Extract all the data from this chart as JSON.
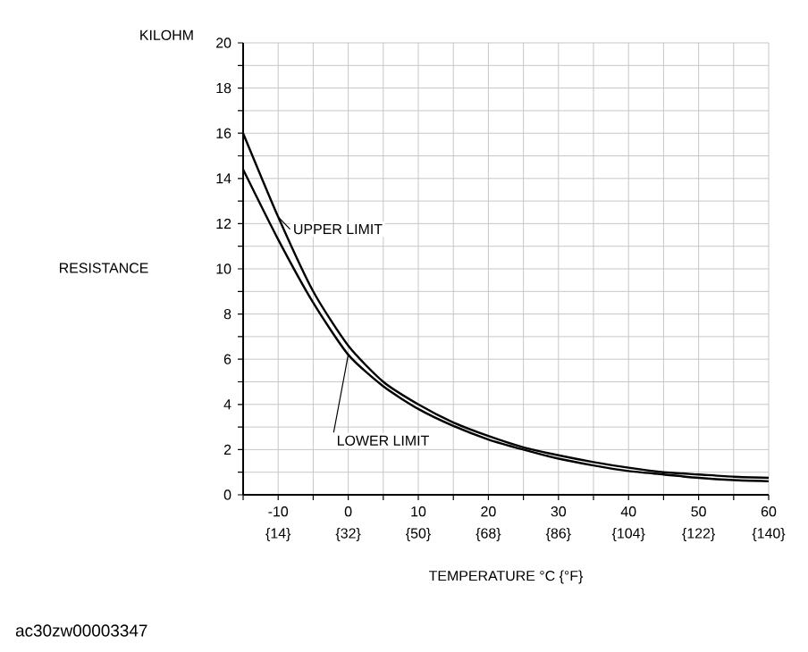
{
  "chart_data": {
    "type": "line",
    "ylabel": "RESISTANCE",
    "xlabel": "TEMPERATURE °C {°F}",
    "annotations": [
      "KILOHM",
      "ac30zw00003347"
    ],
    "x": [
      -15,
      -10,
      -5,
      0,
      5,
      10,
      15,
      20,
      25,
      30,
      35,
      40,
      45,
      50,
      55,
      60
    ],
    "series": [
      {
        "name": "UPPER LIMIT",
        "color": "#000000",
        "values": [
          16,
          12.3,
          9,
          6.6,
          5.0,
          4.0,
          3.2,
          2.6,
          2.1,
          1.75,
          1.45,
          1.2,
          1.0,
          0.9,
          0.8,
          0.75
        ]
      },
      {
        "name": "LOWER LIMIT",
        "color": "#000000",
        "values": [
          14.4,
          11.3,
          8.5,
          6.2,
          4.8,
          3.8,
          3.05,
          2.45,
          2.0,
          1.6,
          1.3,
          1.05,
          0.9,
          0.75,
          0.65,
          0.6
        ]
      }
    ],
    "xlim": [
      -15,
      60
    ],
    "ylim": [
      0,
      20
    ],
    "xticks": [
      {
        "value": -15,
        "label": null
      },
      -10,
      {
        "value": -5,
        "label": null
      },
      0,
      {
        "value": 5,
        "label": null
      },
      10,
      {
        "value": 15,
        "label": null
      },
      20,
      {
        "value": 25,
        "label": null
      },
      30,
      {
        "value": 35,
        "label": null
      },
      40,
      {
        "value": 45,
        "label": null
      },
      50,
      {
        "value": 55,
        "label": null
      },
      60
    ],
    "x2lim": [
      5,
      140
    ],
    "x2ticks": [
      {
        "value": 14,
        "label": "{14}"
      },
      {
        "value": 32,
        "label": "{32}"
      },
      {
        "value": 50,
        "label": "{50}"
      },
      {
        "value": 68,
        "label": "{68}"
      },
      {
        "value": 86,
        "label": "{86}"
      },
      {
        "value": 104,
        "label": "{104}"
      },
      {
        "value": 122,
        "label": "{122}"
      },
      {
        "value": 140,
        "label": "{140}"
      }
    ],
    "yticks": [
      0,
      {
        "value": 1,
        "label": null
      },
      2,
      {
        "value": 3,
        "label": null
      },
      4,
      {
        "value": 5,
        "label": null
      },
      6,
      {
        "value": 7,
        "label": null
      },
      8,
      {
        "value": 9,
        "label": null
      },
      10,
      {
        "value": 11,
        "label": null
      },
      12,
      {
        "value": 13,
        "label": null
      },
      14,
      {
        "value": 15,
        "label": null
      },
      16,
      {
        "value": 17,
        "label": null
      },
      18,
      {
        "value": 19,
        "label": null
      },
      20
    ],
    "grid": true,
    "marker": "none",
    "line_style": "solid"
  }
}
